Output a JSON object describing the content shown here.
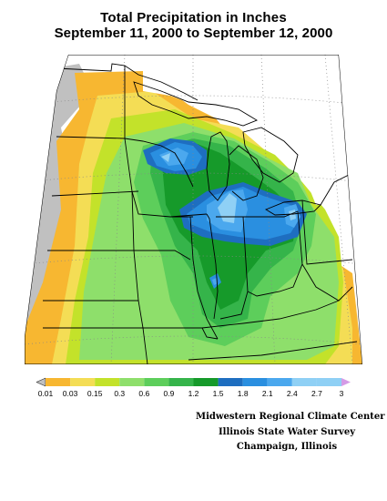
{
  "title": {
    "line1": "Total Precipitation in Inches",
    "line2": "September 11, 2000 to September 12, 2000"
  },
  "legend": {
    "labels": [
      "0.01",
      "0.03",
      "0.15",
      "0.3",
      "0.6",
      "0.9",
      "1.2",
      "1.5",
      "1.8",
      "2.1",
      "2.4",
      "2.7",
      "3"
    ],
    "colors": [
      "#c0c0c0",
      "#f7b731",
      "#f4dd55",
      "#c3e22a",
      "#8edf6b",
      "#5dce5b",
      "#35b44a",
      "#169a2a",
      "#1e6ec0",
      "#2a8fe0",
      "#4ba8ee",
      "#8fd0f5",
      "#d59be6"
    ]
  },
  "credits": {
    "line1": "Midwestern Regional Climate Center",
    "line2": "Illinois State Water Survey",
    "line3": "Champaign, Illinois"
  },
  "map": {
    "nodata_color": "#c0c0c0",
    "land_color": "#ffffff",
    "border_color": "#000000",
    "grid_color": "#888888"
  }
}
